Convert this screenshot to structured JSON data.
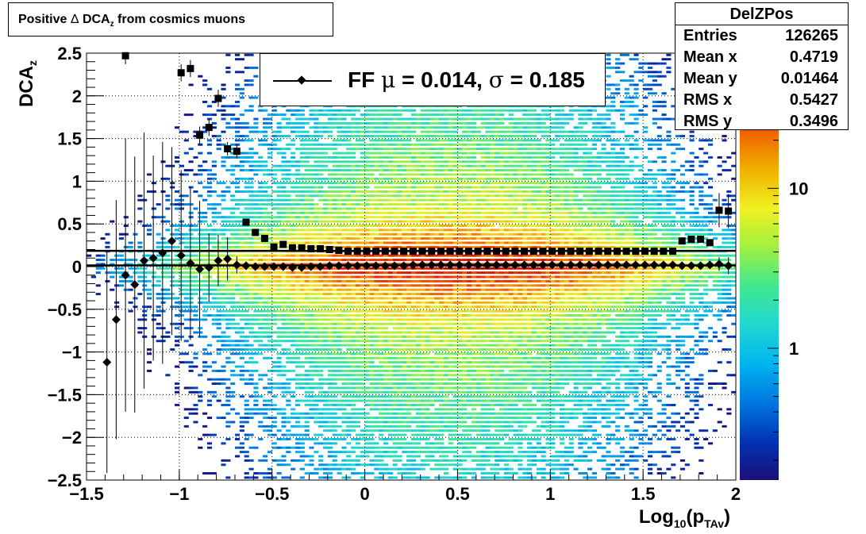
{
  "title": {
    "prefix": "Positive ",
    "delta": "Δ",
    "dca": " DCA",
    "sub": "z",
    "suffix": " from cosmics muons"
  },
  "stats": {
    "name": "DelZPos",
    "rows": [
      {
        "label": "Entries",
        "value": "126265"
      },
      {
        "label": "Mean x",
        "value": "0.4719"
      },
      {
        "label": "Mean y",
        "value": "0.01464"
      },
      {
        "label": "RMS x",
        "value": "0.5427"
      },
      {
        "label": "RMS y",
        "value": "0.3496"
      }
    ]
  },
  "legend": {
    "label": "FF",
    "mu_symbol": "μ",
    "mu_text": " =  0.014, ",
    "sigma_symbol": "σ",
    "sigma_text": " =   0.185"
  },
  "axes": {
    "ytitle_main": "DCA",
    "ytitle_sub": "z",
    "xtitle_main": "Log",
    "xtitle_sub1": "10",
    "xtitle_mid": "(p",
    "xtitle_sub2": "TAv",
    "xtitle_end": ")"
  },
  "colors": {
    "markers": "#000000",
    "grid": "#000000",
    "palette": [
      "#1c0f78",
      "#0033b4",
      "#0078e0",
      "#00b4f0",
      "#20d8d0",
      "#40e890",
      "#a0f040",
      "#f0f020",
      "#f0b000",
      "#f06000",
      "#e02000",
      "#a01000"
    ]
  },
  "chart_data": {
    "type": "heatmap",
    "xlim": [
      -1.5,
      2.0
    ],
    "ylim": [
      -2.5,
      2.5
    ],
    "x_ticks": [
      "−1.5",
      "−1",
      "−0.5",
      "0",
      "0.5",
      "1",
      "1.5",
      "2"
    ],
    "x_tick_values": [
      -1.5,
      -1.0,
      -0.5,
      0.0,
      0.5,
      1.0,
      1.5,
      2.0
    ],
    "y_ticks": [
      "2.5",
      "2",
      "1.5",
      "1",
      "0.5",
      "0",
      "−0.5",
      "−1",
      "−1.5",
      "−2",
      "−2.5"
    ],
    "y_tick_values": [
      2.5,
      2.0,
      1.5,
      1.0,
      0.5,
      0.0,
      -0.5,
      -1.0,
      -1.5,
      -2.0,
      -2.5
    ],
    "grid": true,
    "z_scale": "log",
    "z_ticks": [
      "10",
      "1"
    ],
    "z_tick_values": [
      10,
      1
    ],
    "zlim": [
      0.15,
      70
    ],
    "density_model": {
      "x_mean": 0.47,
      "x_rms": 0.54,
      "y_rms": 0.35,
      "peak": 60
    },
    "fit_lines": [
      {
        "name": "mean fit",
        "y": 0.014
      },
      {
        "name": "sigma fit",
        "y": 0.185
      }
    ],
    "series": [
      {
        "name": "FF",
        "marker": "diamond",
        "x": [
          -1.39,
          -1.34,
          -1.29,
          -1.24,
          -1.19,
          -1.14,
          -1.09,
          -1.04,
          -0.99,
          -0.94,
          -0.89,
          -0.84,
          -0.79,
          -0.74,
          -0.69,
          -0.64,
          -0.59,
          -0.54,
          -0.49,
          -0.44,
          -0.39,
          -0.34,
          -0.29,
          -0.24,
          -0.19,
          -0.14,
          -0.09,
          -0.04,
          0.01,
          0.06,
          0.11,
          0.16,
          0.21,
          0.26,
          0.31,
          0.36,
          0.41,
          0.46,
          0.51,
          0.56,
          0.61,
          0.66,
          0.71,
          0.76,
          0.81,
          0.86,
          0.91,
          0.96,
          1.01,
          1.06,
          1.11,
          1.16,
          1.21,
          1.26,
          1.31,
          1.36,
          1.41,
          1.46,
          1.51,
          1.56,
          1.61,
          1.66,
          1.71,
          1.76,
          1.81,
          1.86,
          1.91,
          1.96
        ],
        "y": [
          -1.12,
          -0.62,
          -0.1,
          -0.21,
          0.07,
          0.1,
          0.16,
          0.3,
          0.13,
          0.04,
          -0.03,
          -0.01,
          0.07,
          0.09,
          0.02,
          0.01,
          0.0,
          0.0,
          0.0,
          0.0,
          -0.01,
          -0.01,
          0.0,
          0.0,
          0.01,
          0.01,
          0.01,
          0.01,
          0.01,
          0.01,
          0.01,
          0.01,
          0.01,
          0.02,
          0.02,
          0.02,
          0.02,
          0.02,
          0.02,
          0.02,
          0.02,
          0.02,
          0.02,
          0.02,
          0.02,
          0.02,
          0.02,
          0.02,
          0.02,
          0.02,
          0.02,
          0.02,
          0.02,
          0.02,
          0.02,
          0.02,
          0.02,
          0.02,
          0.02,
          0.02,
          0.02,
          0.02,
          0.01,
          0.01,
          0.01,
          0.02,
          0.03,
          0.01
        ],
        "yerr": [
          1.3,
          1.4,
          1.6,
          1.5,
          1.5,
          1.2,
          1.3,
          1.1,
          1.0,
          0.9,
          0.8,
          0.4,
          0.3,
          0.25,
          0.1,
          0.05,
          0.03,
          0.02,
          0.02,
          0.01,
          0.01,
          0.01,
          0.01,
          0.01,
          0.01,
          0.01,
          0.01,
          0.01,
          0.01,
          0.01,
          0.01,
          0.01,
          0.01,
          0.01,
          0.01,
          0.01,
          0.01,
          0.01,
          0.01,
          0.01,
          0.01,
          0.01,
          0.01,
          0.01,
          0.01,
          0.01,
          0.01,
          0.01,
          0.01,
          0.01,
          0.01,
          0.01,
          0.01,
          0.01,
          0.01,
          0.01,
          0.01,
          0.01,
          0.01,
          0.01,
          0.01,
          0.01,
          0.02,
          0.02,
          0.03,
          0.04,
          0.08,
          0.1
        ]
      },
      {
        "name": "σ",
        "marker": "square",
        "x": [
          -1.29,
          -0.99,
          -0.94,
          -0.89,
          -0.84,
          -0.79,
          -0.74,
          -0.69,
          -0.64,
          -0.59,
          -0.54,
          -0.49,
          -0.44,
          -0.39,
          -0.34,
          -0.29,
          -0.24,
          -0.19,
          -0.14,
          -0.09,
          -0.04,
          0.01,
          0.06,
          0.11,
          0.16,
          0.21,
          0.26,
          0.31,
          0.36,
          0.41,
          0.46,
          0.51,
          0.56,
          0.61,
          0.66,
          0.71,
          0.76,
          0.81,
          0.86,
          0.91,
          0.96,
          1.01,
          1.06,
          1.11,
          1.16,
          1.21,
          1.26,
          1.31,
          1.36,
          1.41,
          1.46,
          1.51,
          1.56,
          1.61,
          1.66,
          1.71,
          1.76,
          1.81,
          1.86,
          1.91,
          1.96
        ],
        "y": [
          2.47,
          2.27,
          2.32,
          1.54,
          1.63,
          1.97,
          1.38,
          1.35,
          0.52,
          0.4,
          0.33,
          0.23,
          0.26,
          0.22,
          0.22,
          0.21,
          0.21,
          0.2,
          0.19,
          0.18,
          0.18,
          0.18,
          0.18,
          0.18,
          0.18,
          0.18,
          0.18,
          0.18,
          0.18,
          0.18,
          0.18,
          0.18,
          0.18,
          0.18,
          0.18,
          0.18,
          0.18,
          0.18,
          0.18,
          0.18,
          0.18,
          0.18,
          0.18,
          0.18,
          0.18,
          0.18,
          0.18,
          0.18,
          0.18,
          0.18,
          0.18,
          0.18,
          0.18,
          0.18,
          0.18,
          0.3,
          0.32,
          0.32,
          0.28,
          0.66,
          0.65
        ],
        "yerr": [
          0.1,
          0.1,
          0.1,
          0.1,
          0.1,
          0.1,
          0.08,
          0.08,
          0.04,
          0.03,
          0.02,
          0.02,
          0.01,
          0.01,
          0.01,
          0.01,
          0.01,
          0.01,
          0.01,
          0.01,
          0.01,
          0.01,
          0.01,
          0.01,
          0.01,
          0.01,
          0.01,
          0.01,
          0.01,
          0.01,
          0.01,
          0.01,
          0.01,
          0.01,
          0.01,
          0.01,
          0.01,
          0.01,
          0.01,
          0.01,
          0.01,
          0.01,
          0.01,
          0.01,
          0.01,
          0.01,
          0.01,
          0.01,
          0.01,
          0.01,
          0.01,
          0.01,
          0.01,
          0.01,
          0.01,
          0.02,
          0.02,
          0.02,
          0.03,
          0.2,
          0.2
        ]
      }
    ]
  }
}
